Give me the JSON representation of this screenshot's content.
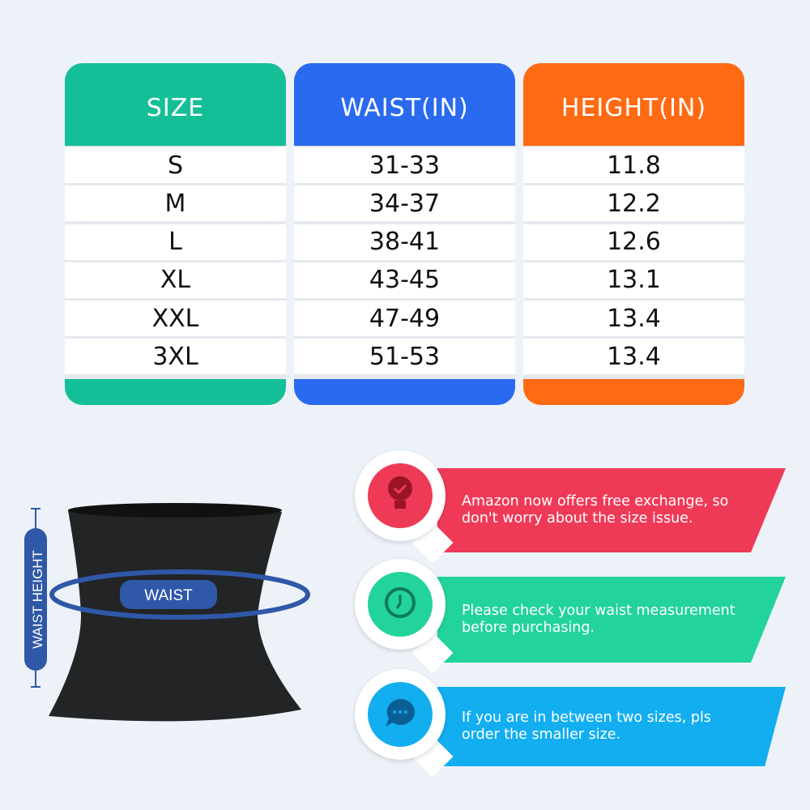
{
  "table": {
    "columns": [
      {
        "header": "SIZE",
        "color": "#14bf98",
        "values": [
          "S",
          "M",
          "L",
          "XL",
          "XXL",
          "3XL"
        ]
      },
      {
        "header": "WAIST(IN)",
        "color": "#2a6af0",
        "values": [
          "31-33",
          "34-37",
          "38-41",
          "43-45",
          "47-49",
          "51-53"
        ]
      },
      {
        "header": "HEIGHT(IN)",
        "color": "#ff6a12",
        "values": [
          "11.8",
          "12.2",
          "12.6",
          "13.1",
          "13.4",
          "13.4"
        ]
      }
    ]
  },
  "diagram": {
    "height_label": "WAIST HEIGHT",
    "waist_label": "WAIST",
    "accent": "#2f58a8"
  },
  "tips": [
    {
      "text": "Amazon now offers free exchange, so don't worry about the size issue.",
      "icon": "lightbulb-check-icon",
      "color": "#ef3a57"
    },
    {
      "text": "Please check your waist measurement before purchasing.",
      "icon": "clock-icon",
      "color": "#22d39c"
    },
    {
      "text": "If you are in between two sizes, pls order the smaller size.",
      "icon": "chat-bubble-icon",
      "color": "#12aef0"
    }
  ]
}
